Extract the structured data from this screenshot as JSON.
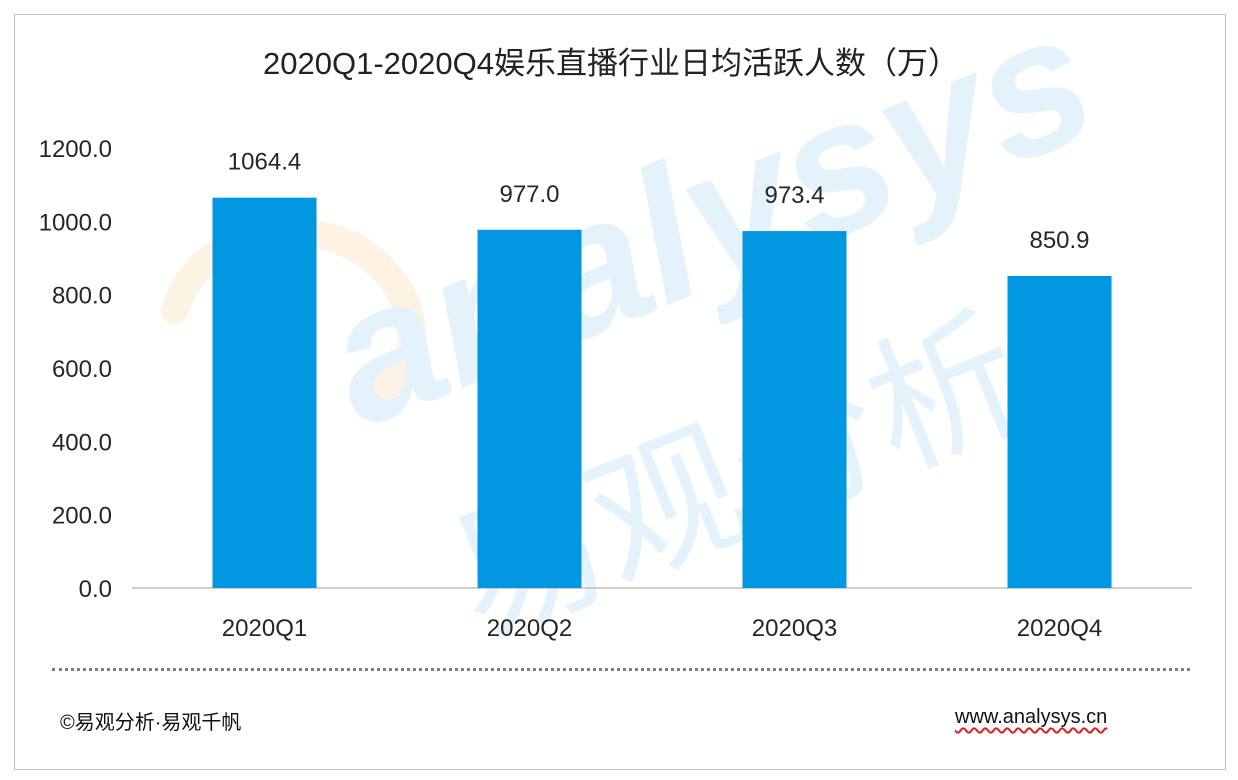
{
  "chart_data": {
    "type": "bar",
    "title": "2020Q1-2020Q4娱乐直播行业日均活跃人数（万）",
    "categories": [
      "2020Q1",
      "2020Q2",
      "2020Q3",
      "2020Q4"
    ],
    "values": [
      1064.4,
      977.0,
      973.4,
      850.9
    ],
    "value_labels": [
      "1064.4",
      "977.0",
      "973.4",
      "850.9"
    ],
    "ylim": [
      0,
      1200
    ],
    "yticks": [
      "0.0",
      "200.0",
      "400.0",
      "600.0",
      "800.0",
      "1000.0",
      "1200.0"
    ],
    "grid": false,
    "legend": "none",
    "bar_color": "#0096e0"
  },
  "footer": {
    "left": "©易观分析·易观千帆",
    "right": "www.analysys.cn"
  },
  "watermark": {
    "text_en": "analysys",
    "text_cn": "易观分析"
  }
}
